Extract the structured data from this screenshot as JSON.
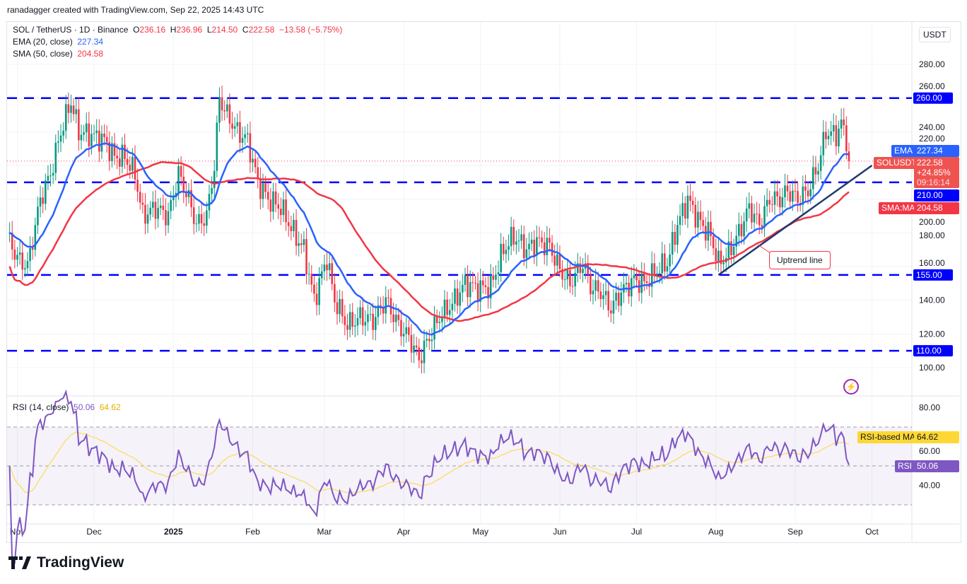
{
  "credit": "ranadagger created with TradingView.com, Sep 22, 2025 14:43 UTC",
  "legend": {
    "symbol": "SOL / TetherUS · 1D · Binance",
    "o_label": "O",
    "o": "236.16",
    "h_label": "H",
    "h": "236.96",
    "l_label": "L",
    "l": "214.50",
    "c_label": "C",
    "c": "222.58",
    "change": "−13.58 (−5.75%)",
    "ema": "EMA (20, close)",
    "ema_val": "227.34",
    "sma": "SMA (50, close)",
    "sma_val": "204.58",
    "rsi": "RSI (14, close)",
    "rsi_val": "50.06",
    "rsi_ma_val": "64.62"
  },
  "currency": "USDT",
  "tags": {
    "ema_label": "EMA",
    "ema": "227.34",
    "sym_label": "SOLUSDT",
    "price": "222.58",
    "pct": "+24.85%",
    "countdown": "09:16:14",
    "level": "210.00",
    "sma_label": "SMA:MA",
    "sma": "204.58",
    "rsima_label": "RSI-based MA",
    "rsima": "64.62",
    "rsi_label": "RSI",
    "rsi": "50.06"
  },
  "annotation": "Uptrend line",
  "logo": "TradingView",
  "colors": {
    "up": "#089981",
    "down": "#f23645",
    "ema": "#2962ff",
    "sma": "#f23645",
    "level": "#0000ff",
    "trend": "#1e3a6e",
    "rsi": "#7e57c2",
    "rsi_ma": "#fdd835"
  },
  "chart_data": {
    "type": "candlestick",
    "price_ticks": [
      "100.00",
      "120.00",
      "140.00",
      "160.00",
      "180.00",
      "200.00",
      "220.00",
      "240.00",
      "260.00",
      "280.00"
    ],
    "ylim": [
      92,
      300
    ],
    "rsi_ticks": [
      "40.00",
      "60.00",
      "80.00"
    ],
    "rsi_bands": [
      30,
      50,
      70
    ],
    "time_ticks": [
      {
        "label": "Nov",
        "date": "2024-11-01"
      },
      {
        "label": "Dec",
        "date": "2024-12-01"
      },
      {
        "label": "2025",
        "date": "2025-01-01"
      },
      {
        "label": "Feb",
        "date": "2025-02-01"
      },
      {
        "label": "Mar",
        "date": "2025-03-01"
      },
      {
        "label": "Apr",
        "date": "2025-04-01"
      },
      {
        "label": "May",
        "date": "2025-05-01"
      },
      {
        "label": "Jun",
        "date": "2025-06-01"
      },
      {
        "label": "Jul",
        "date": "2025-07-01"
      },
      {
        "label": "Aug",
        "date": "2025-08-01"
      },
      {
        "label": "Sep",
        "date": "2025-09-01"
      },
      {
        "label": "Oct",
        "date": "2025-10-01"
      }
    ],
    "levels": [
      {
        "value": 260,
        "label": "260.00"
      },
      {
        "value": 210,
        "label": "210.00"
      },
      {
        "value": 155,
        "label": "155.00"
      },
      {
        "value": 110,
        "label": "110.00"
      }
    ],
    "trendline": [
      [
        "2025-08-02",
        155
      ],
      [
        "2025-10-01",
        220
      ]
    ],
    "closes": [
      [
        "2024-10-29",
        175
      ],
      [
        "2024-11-01",
        165
      ],
      [
        "2024-11-05",
        160
      ],
      [
        "2024-11-10",
        200
      ],
      [
        "2024-11-14",
        215
      ],
      [
        "2024-11-18",
        240
      ],
      [
        "2024-11-22",
        258
      ],
      [
        "2024-11-25",
        240
      ],
      [
        "2024-11-30",
        238
      ],
      [
        "2024-12-05",
        235
      ],
      [
        "2024-12-09",
        225
      ],
      [
        "2024-12-13",
        225
      ],
      [
        "2024-12-17",
        215
      ],
      [
        "2024-12-20",
        190
      ],
      [
        "2024-12-25",
        195
      ],
      [
        "2024-12-30",
        190
      ],
      [
        "2025-01-03",
        215
      ],
      [
        "2025-01-07",
        200
      ],
      [
        "2025-01-10",
        185
      ],
      [
        "2025-01-14",
        190
      ],
      [
        "2025-01-17",
        220
      ],
      [
        "2025-01-19",
        260
      ],
      [
        "2025-01-22",
        250
      ],
      [
        "2025-01-26",
        240
      ],
      [
        "2025-01-30",
        235
      ],
      [
        "2025-02-03",
        210
      ],
      [
        "2025-02-07",
        200
      ],
      [
        "2025-02-12",
        195
      ],
      [
        "2025-02-17",
        180
      ],
      [
        "2025-02-21",
        170
      ],
      [
        "2025-02-25",
        140
      ],
      [
        "2025-03-02",
        165
      ],
      [
        "2025-03-05",
        140
      ],
      [
        "2025-03-10",
        125
      ],
      [
        "2025-03-15",
        130
      ],
      [
        "2025-03-20",
        128
      ],
      [
        "2025-03-25",
        140
      ],
      [
        "2025-03-30",
        125
      ],
      [
        "2025-04-03",
        118
      ],
      [
        "2025-04-07",
        105
      ],
      [
        "2025-04-10",
        115
      ],
      [
        "2025-04-15",
        130
      ],
      [
        "2025-04-20",
        138
      ],
      [
        "2025-04-25",
        150
      ],
      [
        "2025-04-30",
        147
      ],
      [
        "2025-05-05",
        148
      ],
      [
        "2025-05-10",
        170
      ],
      [
        "2025-05-14",
        178
      ],
      [
        "2025-05-19",
        170
      ],
      [
        "2025-05-23",
        175
      ],
      [
        "2025-05-28",
        172
      ],
      [
        "2025-06-01",
        158
      ],
      [
        "2025-06-05",
        150
      ],
      [
        "2025-06-10",
        162
      ],
      [
        "2025-06-13",
        148
      ],
      [
        "2025-06-17",
        145
      ],
      [
        "2025-06-21",
        135
      ],
      [
        "2025-06-25",
        145
      ],
      [
        "2025-06-30",
        152
      ],
      [
        "2025-07-04",
        150
      ],
      [
        "2025-07-09",
        158
      ],
      [
        "2025-07-13",
        162
      ],
      [
        "2025-07-17",
        185
      ],
      [
        "2025-07-21",
        200
      ],
      [
        "2025-07-25",
        188
      ],
      [
        "2025-07-30",
        178
      ],
      [
        "2025-08-02",
        162
      ],
      [
        "2025-08-06",
        168
      ],
      [
        "2025-08-10",
        180
      ],
      [
        "2025-08-14",
        195
      ],
      [
        "2025-08-18",
        185
      ],
      [
        "2025-08-22",
        200
      ],
      [
        "2025-08-26",
        200
      ],
      [
        "2025-08-29",
        205
      ],
      [
        "2025-09-02",
        200
      ],
      [
        "2025-09-06",
        205
      ],
      [
        "2025-09-10",
        220
      ],
      [
        "2025-09-13",
        240
      ],
      [
        "2025-09-17",
        238
      ],
      [
        "2025-09-19",
        245
      ],
      [
        "2025-09-21",
        236
      ],
      [
        "2025-09-22",
        222.58
      ]
    ]
  }
}
